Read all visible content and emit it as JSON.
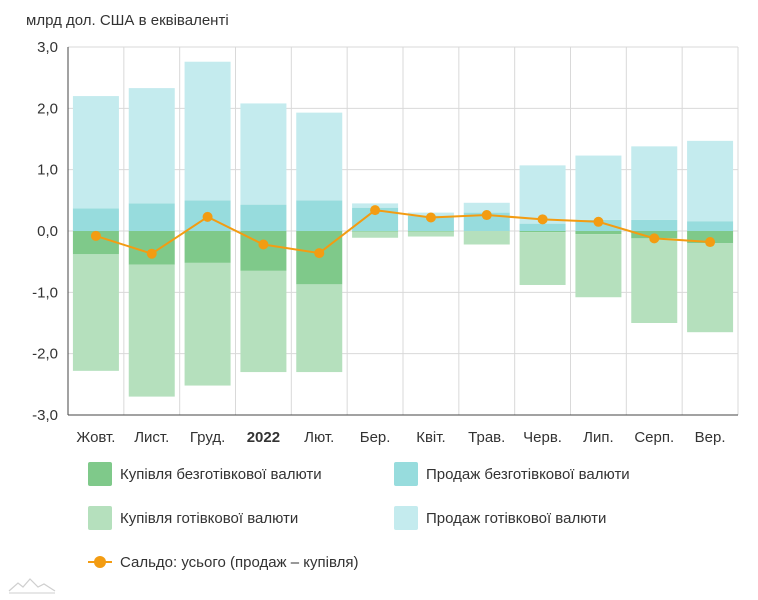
{
  "chart_data": {
    "type": "bar",
    "title": "",
    "unit_label": "млрд дол. США в еквіваленті",
    "categories": [
      "Жовт.",
      "Лист.",
      "Груд.",
      "2022",
      "Лют.",
      "Бер.",
      "Квіт.",
      "Трав.",
      "Черв.",
      "Лип.",
      "Серп.",
      "Вер."
    ],
    "ylim": [
      -3.0,
      3.0
    ],
    "yticks": [
      "3,0",
      "2,0",
      "1,0",
      "0,0",
      "-1,0",
      "-2,0",
      "-3,0"
    ],
    "series": [
      {
        "name": "Купівля безготівкової валюти",
        "values": [
          -0.38,
          -0.55,
          -0.52,
          -0.65,
          -0.87,
          -0.01,
          -0.01,
          0.0,
          -0.02,
          -0.05,
          -0.12,
          -0.2
        ],
        "color": "#7fc98a"
      },
      {
        "name": "Продаж безготівкової валюти",
        "values": [
          0.37,
          0.45,
          0.5,
          0.43,
          0.5,
          0.38,
          0.25,
          0.3,
          0.12,
          0.18,
          0.18,
          0.16
        ],
        "color": "#97dcdd"
      },
      {
        "name": "Купівля готівкової валюти",
        "values": [
          -1.9,
          -2.15,
          -2.0,
          -1.65,
          -1.43,
          -0.1,
          -0.08,
          -0.22,
          -0.86,
          -1.03,
          -1.38,
          -1.45
        ],
        "color": "#b5e0bd"
      },
      {
        "name": "Продаж готівкової валюти",
        "values": [
          1.83,
          1.88,
          2.26,
          1.65,
          1.43,
          0.07,
          0.05,
          0.16,
          0.95,
          1.05,
          1.2,
          1.31
        ],
        "color": "#c4ebee"
      },
      {
        "name": "Сальдо: усього (продаж – купівля)",
        "values": [
          -0.08,
          -0.37,
          0.23,
          -0.22,
          -0.36,
          0.34,
          0.22,
          0.26,
          0.19,
          0.15,
          -0.12,
          -0.18
        ],
        "color": "#f39c12",
        "type": "line"
      }
    ],
    "grid": true,
    "legend": "bottom"
  },
  "colors": {
    "grid": "#d9d9d9",
    "axis": "#444444"
  },
  "icons": {
    "logo": "mountain-logo-icon"
  }
}
